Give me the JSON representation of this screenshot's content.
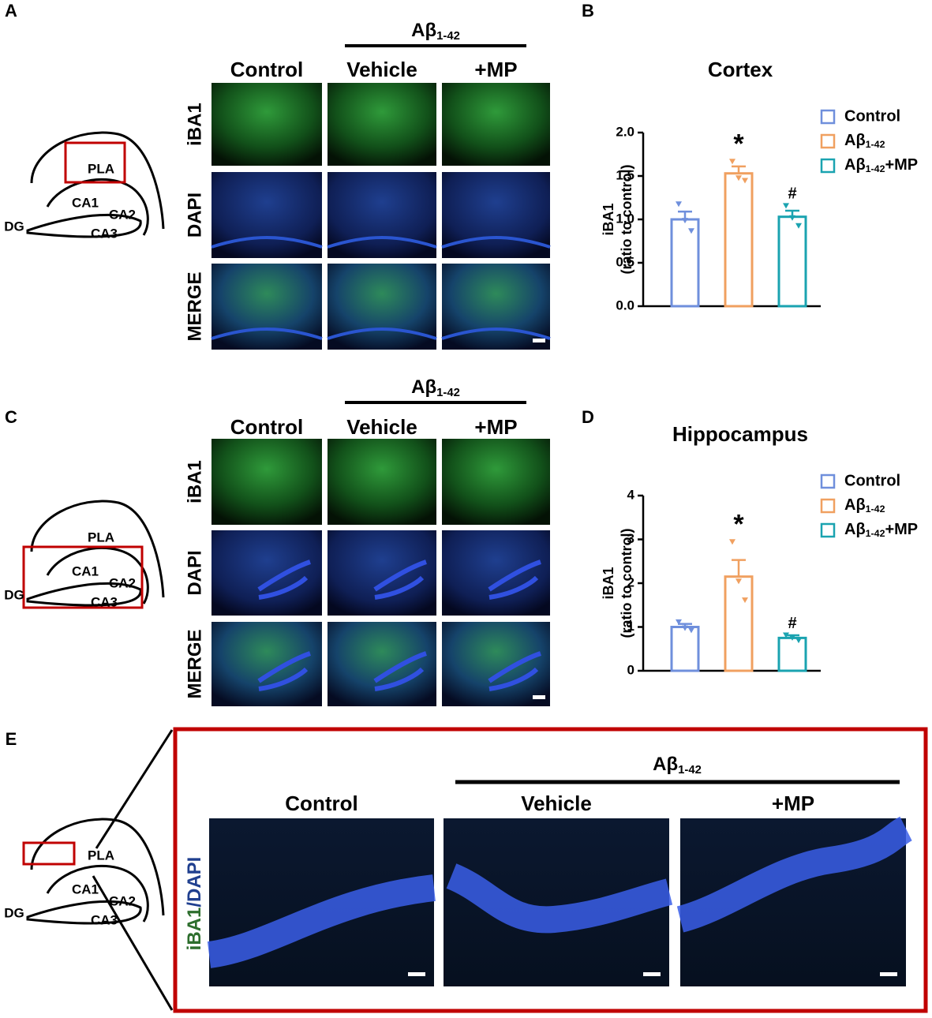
{
  "panels": {
    "A": {
      "label": "A",
      "group": "Aβ1-42",
      "columns": [
        "Control",
        "Vehicle",
        "+MP"
      ],
      "rows": [
        "iBA1",
        "DAPI",
        "MERGE"
      ],
      "schematic": [
        "PLA",
        "CA1",
        "CA2",
        "CA3",
        "DG"
      ]
    },
    "C": {
      "label": "C",
      "group": "Aβ1-42",
      "columns": [
        "Control",
        "Vehicle",
        "+MP"
      ],
      "rows": [
        "iBA1",
        "DAPI",
        "MERGE"
      ],
      "schematic": [
        "PLA",
        "CA1",
        "CA2",
        "CA3",
        "DG"
      ]
    },
    "E": {
      "label": "E",
      "group": "Aβ1-42",
      "columns": [
        "Control",
        "Vehicle",
        "+MP"
      ],
      "row_label": [
        "iBA1",
        "/DAPI"
      ],
      "schematic": [
        "PLA",
        "CA1",
        "CA2",
        "CA3",
        "DG"
      ]
    }
  },
  "chart_data": [
    {
      "type": "bar",
      "panel_label": "B",
      "title": "Cortex",
      "y_label": [
        "iBA1",
        "(ratio to control)"
      ],
      "categories": [
        null,
        null,
        null
      ],
      "legend": [
        "Control",
        "Aβ1-42",
        "Aβ1-42+MP"
      ],
      "colors": [
        "#6f8fdc",
        "#f0a060",
        "#1aa3b0"
      ],
      "values": [
        1.0,
        1.53,
        1.03
      ],
      "errors": [
        0.09,
        0.08,
        0.07
      ],
      "points": [
        [
          1.18,
          0.99,
          0.87
        ],
        [
          1.67,
          1.48,
          1.45
        ],
        [
          1.16,
          1.02,
          0.93
        ]
      ],
      "annotations": [
        "*",
        "#"
      ],
      "ylim": [
        0,
        2.0
      ],
      "yticks": [
        {
          "value": 0,
          "label": "0.0"
        },
        {
          "value": 0.5,
          "label": "0.5"
        },
        {
          "value": 1,
          "label": "1.0"
        },
        {
          "value": 1.5,
          "label": "1.5"
        },
        {
          "value": 2,
          "label": "2.0"
        }
      ]
    },
    {
      "type": "bar",
      "panel_label": "D",
      "title": "Hippocampus",
      "y_label": [
        "iBA1",
        "(ratio to control)"
      ],
      "categories": [
        null,
        null,
        null
      ],
      "legend": [
        "Control",
        "Aβ1-42",
        "Aβ1-42+MP"
      ],
      "colors": [
        "#6f8fdc",
        "#f0a060",
        "#1aa3b0"
      ],
      "values": [
        1.0,
        2.15,
        0.75
      ],
      "errors": [
        0.07,
        0.38,
        0.06
      ],
      "points": [
        [
          1.12,
          0.98,
          0.93
        ],
        [
          2.95,
          2.05,
          1.62
        ],
        [
          0.82,
          0.76,
          0.7
        ]
      ],
      "annotations": [
        "*",
        "#"
      ],
      "ylim": [
        0,
        4
      ],
      "yticks": [
        0,
        1,
        2,
        3,
        4
      ]
    }
  ]
}
